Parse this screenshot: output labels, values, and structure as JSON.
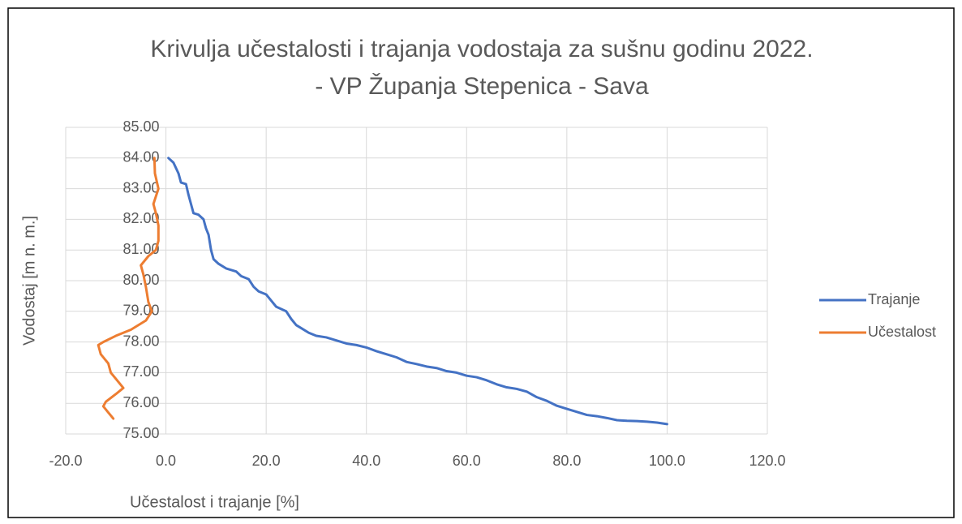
{
  "chart_data": {
    "type": "line",
    "title": [
      "Krivulja učestalosti i trajanja vodostaja za sušnu godinu 2022.",
      "- VP Županja Stepenica - Sava"
    ],
    "xlabel": "Učestalost i trajanje [%]",
    "ylabel": "Vodostaj [m n. m.]",
    "xlim": [
      -20,
      120
    ],
    "ylim": [
      75,
      85
    ],
    "xticks": [
      {
        "value": -20,
        "label": "-20.0"
      },
      {
        "value": 0,
        "label": "0.0"
      },
      {
        "value": 20,
        "label": "20.0"
      },
      {
        "value": 40,
        "label": "40.0"
      },
      {
        "value": 60,
        "label": "60.0"
      },
      {
        "value": 80,
        "label": "80.0"
      },
      {
        "value": 100,
        "label": "100.0"
      },
      {
        "value": 120,
        "label": "120.0"
      }
    ],
    "yticks": [
      {
        "value": 75,
        "label": "75.00"
      },
      {
        "value": 76,
        "label": "76.00"
      },
      {
        "value": 77,
        "label": "77.00"
      },
      {
        "value": 78,
        "label": "78.00"
      },
      {
        "value": 79,
        "label": "79.00"
      },
      {
        "value": 80,
        "label": "80.00"
      },
      {
        "value": 81,
        "label": "81.00"
      },
      {
        "value": 82,
        "label": "82.00"
      },
      {
        "value": 83,
        "label": "83.00"
      },
      {
        "value": 84,
        "label": "84.00"
      },
      {
        "value": 85,
        "label": "85.00"
      }
    ],
    "grid": true,
    "legend": "right",
    "series": [
      {
        "name": "Trajanje",
        "color": "#4472c4",
        "x": [
          0.5,
          1.5,
          2.5,
          3,
          4,
          4.5,
          5,
          5.5,
          6.5,
          7.5,
          8,
          8.5,
          9,
          9.5,
          10.5,
          12,
          14,
          15,
          16.5,
          17.5,
          18.5,
          20,
          21,
          22,
          24,
          25,
          26,
          27,
          28.5,
          30,
          32,
          34,
          36,
          38,
          40,
          42,
          44,
          46,
          48,
          50,
          52,
          54,
          56,
          58,
          60,
          62,
          64,
          66,
          68,
          70,
          72,
          74,
          76,
          78,
          80,
          82,
          84,
          86,
          88,
          90,
          92,
          94,
          96,
          98,
          100
        ],
        "values": [
          84.0,
          83.85,
          83.5,
          83.2,
          83.15,
          82.8,
          82.5,
          82.2,
          82.15,
          82.0,
          81.7,
          81.5,
          81.0,
          80.7,
          80.55,
          80.4,
          80.3,
          80.15,
          80.05,
          79.8,
          79.65,
          79.55,
          79.35,
          79.15,
          79.0,
          78.75,
          78.55,
          78.45,
          78.3,
          78.2,
          78.15,
          78.05,
          77.95,
          77.9,
          77.82,
          77.7,
          77.6,
          77.5,
          77.35,
          77.28,
          77.2,
          77.15,
          77.05,
          77.0,
          76.9,
          76.85,
          76.75,
          76.62,
          76.52,
          76.47,
          76.38,
          76.2,
          76.08,
          75.92,
          75.82,
          75.72,
          75.62,
          75.58,
          75.52,
          75.45,
          75.43,
          75.42,
          75.4,
          75.37,
          75.32
        ]
      },
      {
        "name": "Učestalost",
        "color": "#ed7d31",
        "x": [
          -2.3,
          -2.2,
          -1.5,
          -2.5,
          -2.0,
          -1.5,
          -1.5,
          -2.0,
          -3.5,
          -5,
          -4.5,
          -4,
          -3.5,
          -2.8,
          -4,
          -7,
          -10,
          -12.5,
          -13.5,
          -13,
          -11.5,
          -11,
          -10,
          -8.5,
          -10,
          -12,
          -12.5,
          -11.5,
          -10.5
        ],
        "values": [
          84.0,
          83.5,
          83.0,
          82.5,
          82.2,
          81.8,
          81.3,
          81.0,
          80.8,
          80.5,
          80.2,
          79.8,
          79.3,
          79.0,
          78.7,
          78.4,
          78.2,
          78.0,
          77.9,
          77.6,
          77.3,
          77.0,
          76.8,
          76.5,
          76.3,
          76.05,
          75.9,
          75.7,
          75.5
        ]
      }
    ]
  }
}
